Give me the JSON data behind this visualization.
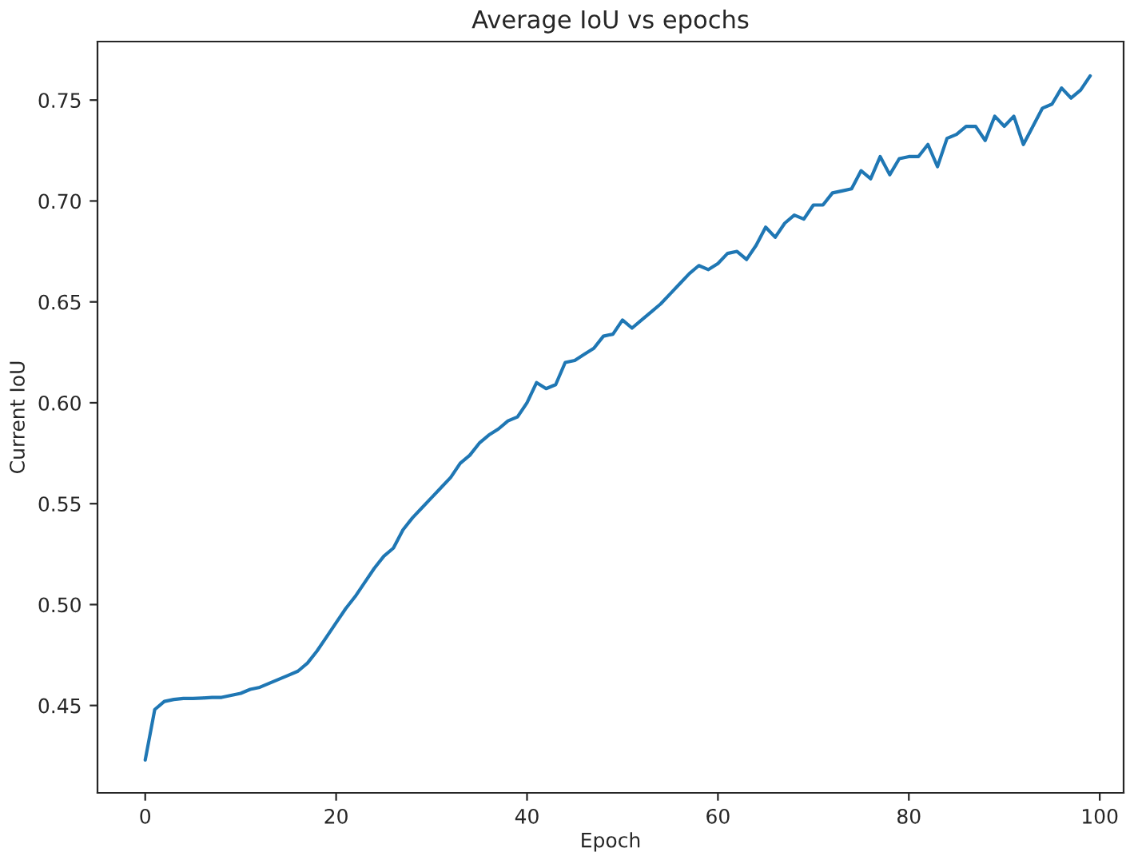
{
  "chart_data": {
    "type": "line",
    "title": "Average IoU vs epochs",
    "xlabel": "Epoch",
    "ylabel": "Current IoU",
    "x": [
      0,
      1,
      2,
      3,
      4,
      5,
      6,
      7,
      8,
      9,
      10,
      11,
      12,
      13,
      14,
      15,
      16,
      17,
      18,
      19,
      20,
      21,
      22,
      23,
      24,
      25,
      26,
      27,
      28,
      29,
      30,
      31,
      32,
      33,
      34,
      35,
      36,
      37,
      38,
      39,
      40,
      41,
      42,
      43,
      44,
      45,
      46,
      47,
      48,
      49,
      50,
      51,
      52,
      53,
      54,
      55,
      56,
      57,
      58,
      59,
      60,
      61,
      62,
      63,
      64,
      65,
      66,
      67,
      68,
      69,
      70,
      71,
      72,
      73,
      74,
      75,
      76,
      77,
      78,
      79,
      80,
      81,
      82,
      83,
      84,
      85,
      86,
      87,
      88,
      89,
      90,
      91,
      92,
      93,
      94,
      95,
      96,
      97,
      98,
      99
    ],
    "series": [
      {
        "color": "#1f77b4",
        "values": [
          0.423,
          0.448,
          0.452,
          0.453,
          0.4535,
          0.4535,
          0.4537,
          0.454,
          0.454,
          0.455,
          0.456,
          0.458,
          0.459,
          0.461,
          0.463,
          0.465,
          0.467,
          0.471,
          0.477,
          0.484,
          0.491,
          0.498,
          0.504,
          0.511,
          0.518,
          0.524,
          0.528,
          0.537,
          0.543,
          0.548,
          0.553,
          0.558,
          0.563,
          0.57,
          0.574,
          0.58,
          0.584,
          0.587,
          0.591,
          0.593,
          0.6,
          0.61,
          0.607,
          0.609,
          0.62,
          0.621,
          0.624,
          0.627,
          0.633,
          0.634,
          0.641,
          0.637,
          0.641,
          0.645,
          0.649,
          0.654,
          0.659,
          0.664,
          0.668,
          0.666,
          0.669,
          0.674,
          0.675,
          0.671,
          0.678,
          0.687,
          0.682,
          0.689,
          0.693,
          0.691,
          0.698,
          0.698,
          0.704,
          0.705,
          0.706,
          0.715,
          0.711,
          0.722,
          0.713,
          0.721,
          0.722,
          0.722,
          0.728,
          0.717,
          0.731,
          0.733,
          0.737,
          0.737,
          0.73,
          0.742,
          0.737,
          0.742,
          0.728,
          0.737,
          0.746,
          0.748,
          0.756,
          0.751,
          0.755,
          0.762
        ]
      }
    ],
    "xlim": [
      -5,
      102.5
    ],
    "ylim": [
      0.4067,
      0.779
    ],
    "xticks": [
      0,
      20,
      40,
      60,
      80,
      100
    ],
    "yticks": [
      {
        "value": 0.45,
        "label": "0.45"
      },
      {
        "value": 0.5,
        "label": "0.50"
      },
      {
        "value": 0.55,
        "label": "0.55"
      },
      {
        "value": 0.6,
        "label": "0.60"
      },
      {
        "value": 0.65,
        "label": "0.65"
      },
      {
        "value": 0.7,
        "label": "0.70"
      },
      {
        "value": 0.75,
        "label": "0.75"
      }
    ],
    "grid": false
  }
}
